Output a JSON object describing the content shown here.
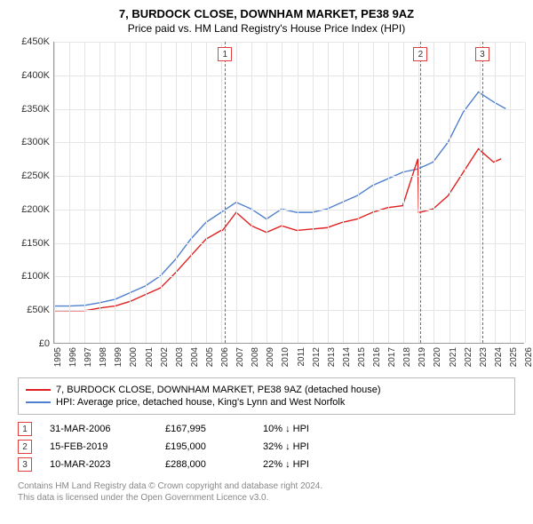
{
  "title": "7, BURDOCK CLOSE, DOWNHAM MARKET, PE38 9AZ",
  "subtitle": "Price paid vs. HM Land Registry's House Price Index (HPI)",
  "chart": {
    "type": "line",
    "xlim": [
      1995,
      2026
    ],
    "ylim": [
      0,
      450000
    ],
    "ytick_step": 50000,
    "y_prefix": "£",
    "x_ticks": [
      1995,
      1996,
      1997,
      1998,
      1999,
      2000,
      2001,
      2002,
      2003,
      2004,
      2005,
      2006,
      2007,
      2008,
      2009,
      2010,
      2011,
      2012,
      2013,
      2014,
      2015,
      2016,
      2017,
      2018,
      2019,
      2020,
      2021,
      2022,
      2023,
      2024,
      2025,
      2026
    ],
    "grid_color": "#e5e5e5",
    "background_color": "#ffffff",
    "series": [
      {
        "name": "price_paid",
        "label": "7, BURDOCK CLOSE, DOWNHAM MARKET, PE38 9AZ (detached house)",
        "color": "#e02020",
        "line_width": 1.4,
        "x": [
          1995,
          1996,
          1997,
          1998,
          1999,
          2000,
          2001,
          2002,
          2003,
          2004,
          2005,
          2006,
          2006.1,
          2007,
          2008,
          2009,
          2010,
          2011,
          2012,
          2013,
          2014,
          2015,
          2016,
          2017,
          2018,
          2019,
          2019.05,
          2019.1,
          2020,
          2021,
          2022,
          2023,
          2023.1,
          2024,
          2024.5
        ],
        "y": [
          48000,
          48000,
          48000,
          52000,
          55000,
          62000,
          72000,
          82000,
          105000,
          130000,
          155000,
          168000,
          168000,
          195000,
          175000,
          165000,
          175000,
          168000,
          170000,
          172000,
          180000,
          185000,
          195000,
          202000,
          205000,
          275000,
          195000,
          195000,
          200000,
          220000,
          255000,
          290000,
          288000,
          270000,
          275000
        ]
      },
      {
        "name": "hpi",
        "label": "HPI: Average price, detached house, King's Lynn and West Norfolk",
        "color": "#5080d0",
        "line_width": 1.4,
        "x": [
          1995,
          1996,
          1997,
          1998,
          1999,
          2000,
          2001,
          2002,
          2003,
          2004,
          2005,
          2006,
          2007,
          2008,
          2009,
          2010,
          2011,
          2012,
          2013,
          2014,
          2015,
          2016,
          2017,
          2018,
          2019,
          2020,
          2021,
          2022,
          2023,
          2024,
          2024.8
        ],
        "y": [
          55000,
          55000,
          56000,
          60000,
          65000,
          75000,
          85000,
          100000,
          125000,
          155000,
          180000,
          195000,
          210000,
          200000,
          185000,
          200000,
          195000,
          195000,
          200000,
          210000,
          220000,
          235000,
          245000,
          255000,
          260000,
          270000,
          300000,
          345000,
          375000,
          360000,
          350000
        ]
      }
    ],
    "markers": [
      {
        "n": "1",
        "x": 2006.25,
        "date": "31-MAR-2006",
        "price": "£167,995",
        "diff": "10% ↓ HPI",
        "color": "#e04040"
      },
      {
        "n": "2",
        "x": 2019.12,
        "date": "15-FEB-2019",
        "price": "£195,000",
        "diff": "32% ↓ HPI",
        "color": "#e04040"
      },
      {
        "n": "3",
        "x": 2023.19,
        "date": "10-MAR-2023",
        "price": "£288,000",
        "diff": "22% ↓ HPI",
        "color": "#e04040"
      }
    ]
  },
  "footer1": "Contains HM Land Registry data © Crown copyright and database right 2024.",
  "footer2": "This data is licensed under the Open Government Licence v3.0."
}
